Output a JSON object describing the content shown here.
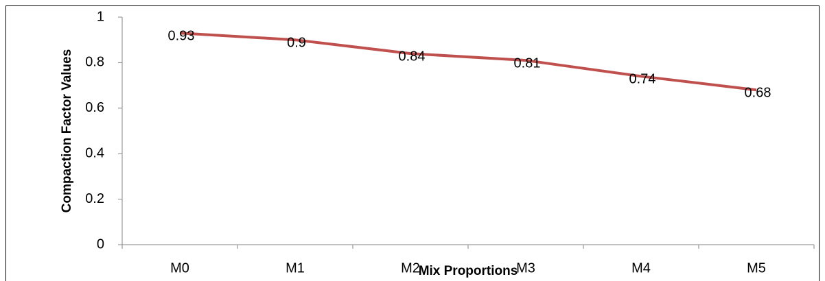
{
  "chart_data": {
    "type": "line",
    "categories": [
      "M0",
      "M1",
      "M2",
      "M3",
      "M4",
      "M5"
    ],
    "values": [
      0.93,
      0.9,
      0.84,
      0.81,
      0.74,
      0.68
    ],
    "color": "#c0504d",
    "x_label": "Mix Proportions",
    "y_label": "Compaction Factor Values",
    "ylim": [
      0,
      1
    ],
    "yticks": [
      0,
      0.2,
      0.4,
      0.6,
      0.8,
      1
    ],
    "grid": false
  }
}
